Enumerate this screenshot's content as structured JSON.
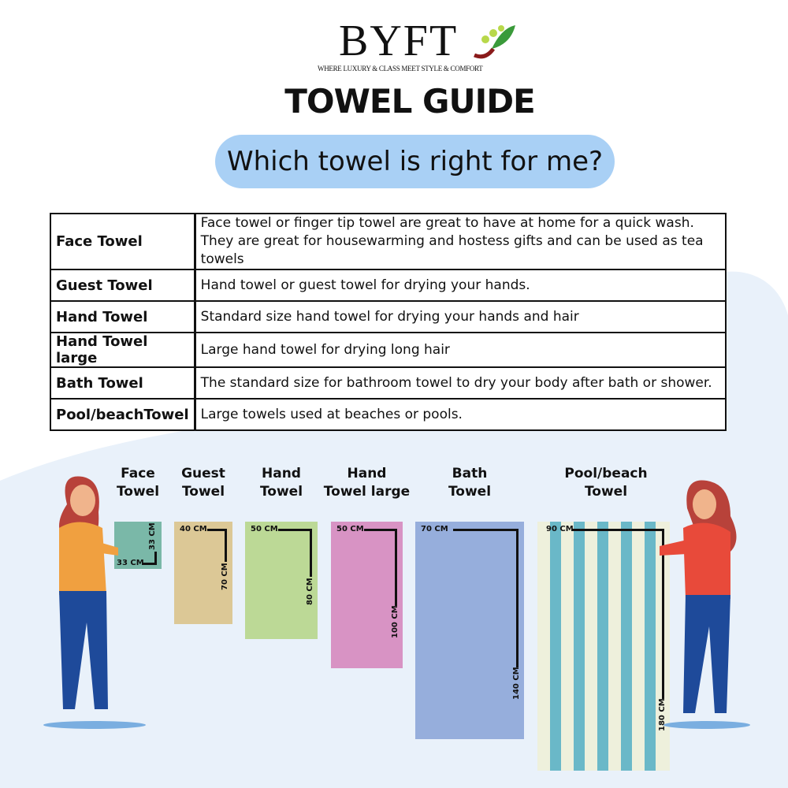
{
  "brand": {
    "logo": "BYFT",
    "tagline": "WHERE LUXURY & CLASS MEET STYLE & COMFORT"
  },
  "title": "TOWEL GUIDE",
  "subtitle": "Which towel is right for me?",
  "table": [
    {
      "name": "Face Towel",
      "desc": "Face towel or finger tip towel are great to have at home for a quick wash.",
      "desc2": "They are great for housewarming and hostess gifts and can be used as tea towels"
    },
    {
      "name": "Guest Towel",
      "desc": "Hand towel or guest towel for drying your hands."
    },
    {
      "name": "Hand Towel",
      "desc": "Standard size hand towel for drying your hands and hair"
    },
    {
      "name": "Hand Towel large",
      "desc": "Large hand towel for drying long hair"
    },
    {
      "name": "Bath Towel",
      "desc": "The standard size for bathroom towel to dry your body after bath or shower."
    },
    {
      "name": "Pool/beachTowel",
      "desc": "Large towels used at beaches or pools."
    }
  ],
  "towels": [
    {
      "l1": "Face",
      "l2": "Towel",
      "width": "33 CM",
      "height": "33 CM",
      "color": "#7ab8a8"
    },
    {
      "l1": "Guest",
      "l2": "Towel",
      "width": "40 CM",
      "height": "70 CM",
      "color": "#dcc896"
    },
    {
      "l1": "Hand",
      "l2": "Towel",
      "width": "50 CM",
      "height": "80 CM",
      "color": "#bcd996"
    },
    {
      "l1": "Hand",
      "l2": "Towel large",
      "width": "50 CM",
      "height": "100 CM",
      "color": "#d893c4"
    },
    {
      "l1": "Bath",
      "l2": "Towel",
      "width": "70 CM",
      "height": "140 CM",
      "color": "#96aedc"
    },
    {
      "l1": "Pool/beach",
      "l2": "Towel",
      "width": "90 CM",
      "height": "180 CM",
      "color": "#eef0dc",
      "stripe": "#6ab8c8"
    }
  ]
}
